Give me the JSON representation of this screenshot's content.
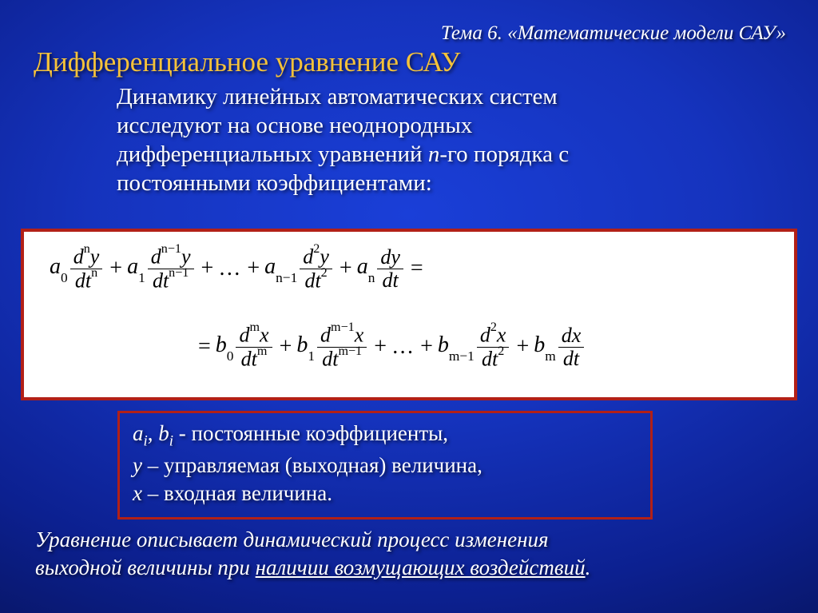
{
  "topic": "Тема 6. «Математические модели САУ»",
  "title": "Дифференциальное уравнение САУ",
  "intro_l1": "Динамику линейных автоматических систем",
  "intro_l2": "исследуют на основе неоднородных",
  "intro_l3_a": "дифференциальных уравнений ",
  "intro_l3_b": "n",
  "intro_l3_c": "-го порядка с",
  "intro_l4": "постоянными коэффициентами:",
  "eq": {
    "a0": "a",
    "a0s": "0",
    "a1": "a",
    "a1s": "1",
    "an1": "a",
    "an1s": "n−1",
    "an": "a",
    "ans": "n",
    "b0": "b",
    "b0s": "0",
    "b1": "b",
    "b1s": "1",
    "bm1": "b",
    "bm1s": "m−1",
    "bm": "b",
    "bms": "m",
    "d": "d",
    "y": "y",
    "x": "x",
    "t": "t",
    "n": "n",
    "n1": "n−1",
    "two": "2",
    "m": "m",
    "m1": "m−1",
    "plus": "+",
    "eq": "=",
    "dots": "…"
  },
  "legend": {
    "l1_a": "a",
    "l1_as": "i",
    "l1_sep": ",  ",
    "l1_b": "b",
    "l1_bs": "i",
    "l1_rest": " -  постоянные коэффициенты,",
    "l2_a": "у",
    "l2_rest": " – управляемая (выходная) величина,",
    "l3_a": "х",
    "l3_rest": " – входная величина."
  },
  "foot_a": "Уравнение описывает динамический процесс изменения",
  "foot_b1": "выходной величины при ",
  "foot_b2": "наличии возмущающих воздействий",
  "foot_b3": "."
}
